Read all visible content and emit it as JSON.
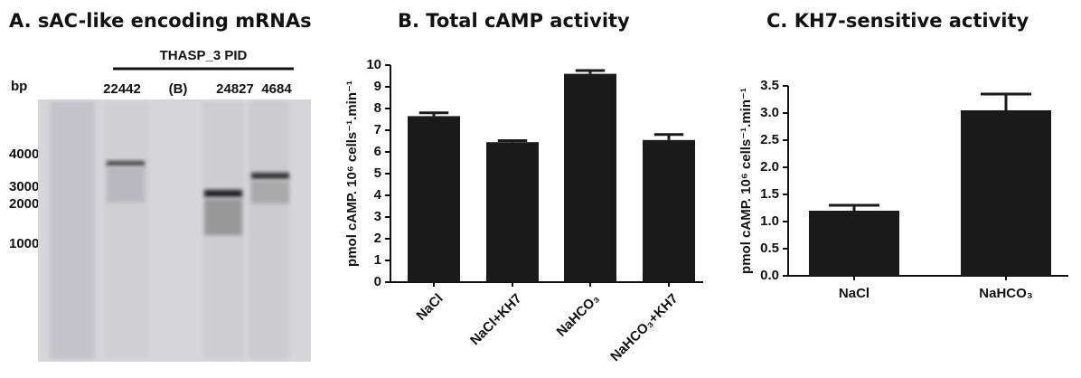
{
  "panel_a": {
    "title": "A. sAC-like encoding mRNAs",
    "group_label": "THASP_3 PID",
    "unit_label": "bp",
    "lanes": [
      "22442",
      "(B)",
      "24827",
      "4684"
    ],
    "markers": [
      "4000",
      "3000",
      "2000",
      "1000"
    ]
  },
  "chart_data": [
    {
      "type": "bar",
      "title": "B. Total cAMP activity",
      "y_label": "pmol cAMP. 10⁶ cells⁻¹.min⁻¹",
      "categories": [
        "NaCl",
        "NaCl+KH7",
        "NaHCO₃",
        "NaHCO₃+KH7"
      ],
      "values": [
        7.65,
        6.45,
        9.6,
        6.55
      ],
      "errors": [
        0.15,
        0.07,
        0.15,
        0.25
      ],
      "color": "#1a1a1a",
      "ylim": [
        0,
        10
      ],
      "yticks": [
        0,
        1,
        2,
        3,
        4,
        5,
        6,
        7,
        8,
        9,
        10
      ]
    },
    {
      "type": "bar",
      "title": "C. KH7-sensitive activity",
      "y_label": "pmol cAMP. 10⁶ cells⁻¹.min⁻¹",
      "categories": [
        "NaCl",
        "NaHCO₃"
      ],
      "values": [
        1.2,
        3.05
      ],
      "errors": [
        0.1,
        0.3
      ],
      "color": "#1a1a1a",
      "ylim": [
        0,
        3.5
      ],
      "yticks": [
        {
          "value": 0,
          "label": "0.0"
        },
        0.5,
        {
          "value": 1,
          "label": "1.0"
        },
        1.5,
        {
          "value": 2,
          "label": "2.0"
        },
        2.5,
        {
          "value": 3,
          "label": "3.0"
        },
        3.5
      ]
    }
  ]
}
